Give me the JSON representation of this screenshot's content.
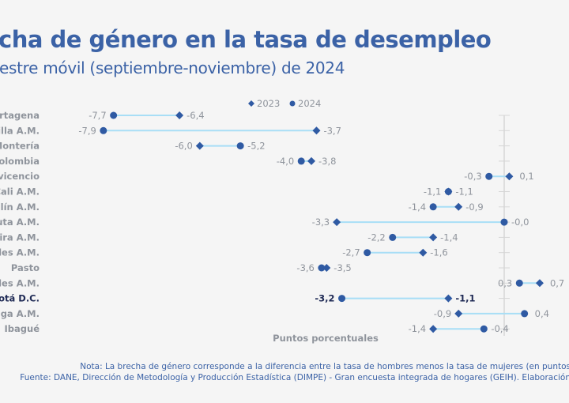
{
  "title": "cha de género en la tasa de desempleo",
  "subtitle": "estre móvil (septiembre-noviembre) de 2024",
  "note": "Nota: La brecha de género corresponde a la diferencia entre la tasa de hombres menos la tasa de mujeres (en puntos",
  "source": "Fuente: DANE, Dirección de Metodología y Producción Estadística (DIMPE) - Gran encuesta integrada de hogares (GEIH). Elaboración",
  "colors": {
    "marker": "#2f5aa3",
    "connector": "#a8def6",
    "label": "#8f949c",
    "highlight": "#1f2a55",
    "title": "#3b62a6"
  },
  "chart_data": {
    "type": "dumbbell",
    "xlabel": "Puntos porcentuales",
    "legend": {
      "position": "top",
      "items": [
        {
          "name": "2023",
          "marker": "diamond"
        },
        {
          "name": "2024",
          "marker": "circle"
        }
      ]
    },
    "categories": [
      "artagena",
      "illa A.M.",
      "Montería",
      "Colombia",
      "vicencio",
      "Cali A.M.",
      "llín A.M.",
      "uta A.M.",
      "eira A.M.",
      "des A.M.",
      "Pasto",
      "les A.M.",
      "otá D.C.",
      "nga A.M.",
      "Ibagué"
    ],
    "highlight": "otá D.C.",
    "series": [
      {
        "name": "2023",
        "values": [
          -6.4,
          -3.7,
          -6.0,
          -3.8,
          0.1,
          -1.1,
          -0.9,
          -3.3,
          -1.4,
          -1.6,
          -3.5,
          0.7,
          -1.1,
          -0.9,
          -1.4
        ]
      },
      {
        "name": "2024",
        "values": [
          -7.7,
          -7.9,
          -5.2,
          -4.0,
          -0.3,
          -1.1,
          -1.4,
          -0.0,
          -2.2,
          -2.7,
          -3.6,
          0.3,
          -3.2,
          0.4,
          -0.4
        ]
      }
    ],
    "value_labels_2023": [
      "-6,4",
      "-3,7",
      "-6,0",
      "-3,8",
      "0,1",
      "-1,1",
      "-0,9",
      "-3,3",
      "-1,4",
      "-1,6",
      "-3,5",
      "0,7",
      "-1,1",
      "-0,9",
      "-1,4"
    ],
    "value_labels_2024": [
      "-7,7",
      "-7,9",
      "-5,2",
      "-4,0",
      "-0,3",
      "-1,1",
      "-1,4",
      "-0,0",
      "-2,2",
      "-2,7",
      "-3,6",
      "0,3",
      "-3,2",
      "0,4",
      "-0,4"
    ],
    "grid": false
  }
}
